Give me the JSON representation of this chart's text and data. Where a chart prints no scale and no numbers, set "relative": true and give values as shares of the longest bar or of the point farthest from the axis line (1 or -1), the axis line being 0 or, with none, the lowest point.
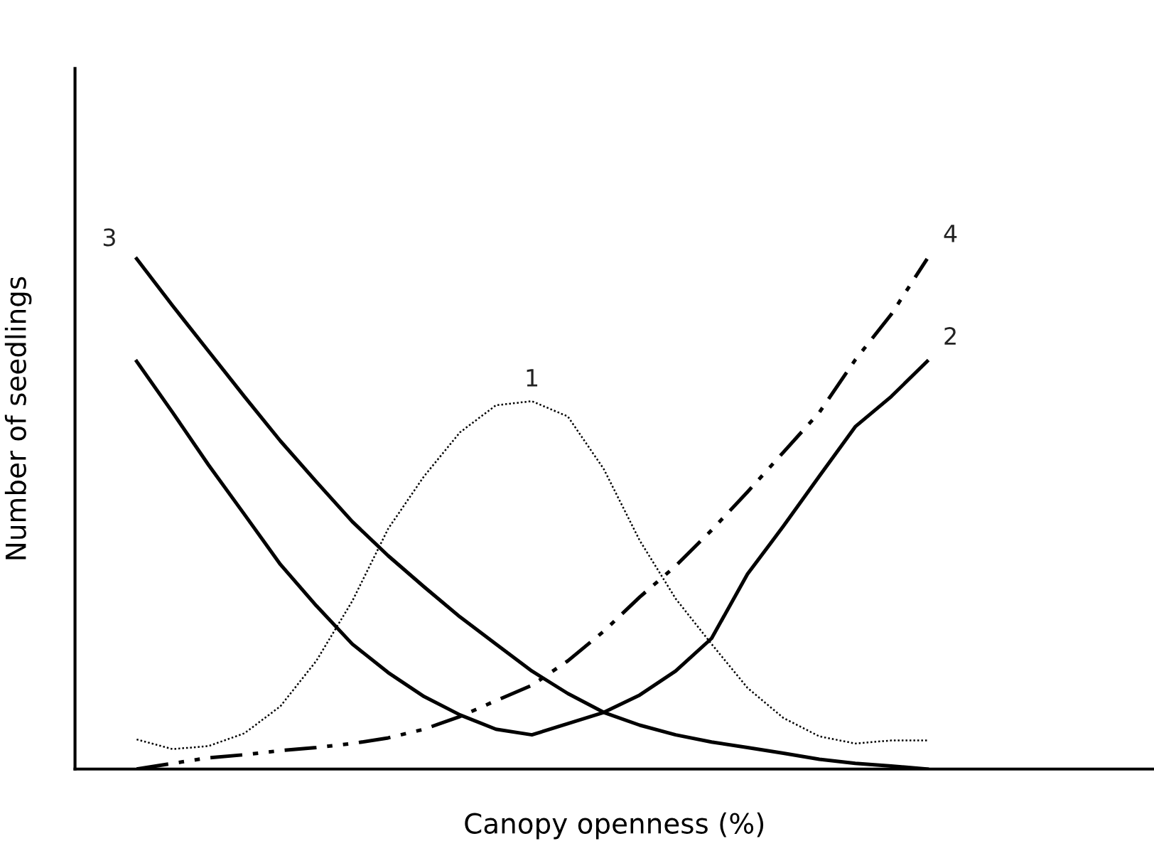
{
  "chart_data": {
    "type": "line",
    "relative": true,
    "xlabel": "Canopy openness (%)",
    "ylabel": "Number of seedlings",
    "tick_labels": false,
    "categories": [
      null,
      null,
      null,
      null,
      null,
      null,
      null,
      null,
      null,
      null,
      null,
      null,
      null,
      null,
      null,
      null,
      null,
      null,
      null,
      null,
      null,
      null,
      null
    ],
    "series": [
      {
        "name": "1",
        "color": "#000000",
        "line_style": "dotted",
        "values": [
          0.058,
          0.039,
          0.045,
          0.07,
          0.123,
          0.212,
          0.329,
          0.471,
          0.574,
          0.66,
          0.713,
          0.721,
          0.691,
          0.588,
          0.448,
          0.334,
          0.245,
          0.159,
          0.1,
          0.064,
          0.05,
          0.056,
          0.056
        ]
      },
      {
        "name": "2",
        "color": "#000000",
        "line_style": "solid",
        "values": [
          0.799,
          0.699,
          0.596,
          0.499,
          0.401,
          0.32,
          0.245,
          0.189,
          0.142,
          0.106,
          0.078,
          0.067,
          0.089,
          0.111,
          0.145,
          0.192,
          0.256,
          0.382,
          0.476,
          0.574,
          0.671,
          0.73,
          0.799
        ]
      },
      {
        "name": "3",
        "color": "#000000",
        "line_style": "solid",
        "values": [
          1.0,
          0.908,
          0.819,
          0.73,
          0.643,
          0.563,
          0.485,
          0.418,
          0.357,
          0.298,
          0.245,
          0.192,
          0.148,
          0.111,
          0.086,
          0.067,
          0.053,
          0.042,
          0.031,
          0.019,
          0.011,
          0.006,
          0.0
        ]
      },
      {
        "name": "4",
        "color": "#000000",
        "line_style": "dashed",
        "values": [
          0.0,
          0.011,
          0.022,
          0.028,
          0.036,
          0.042,
          0.05,
          0.061,
          0.078,
          0.103,
          0.134,
          0.164,
          0.212,
          0.27,
          0.337,
          0.398,
          0.468,
          0.543,
          0.621,
          0.699,
          0.802,
          0.891,
          1.0
        ]
      }
    ]
  }
}
